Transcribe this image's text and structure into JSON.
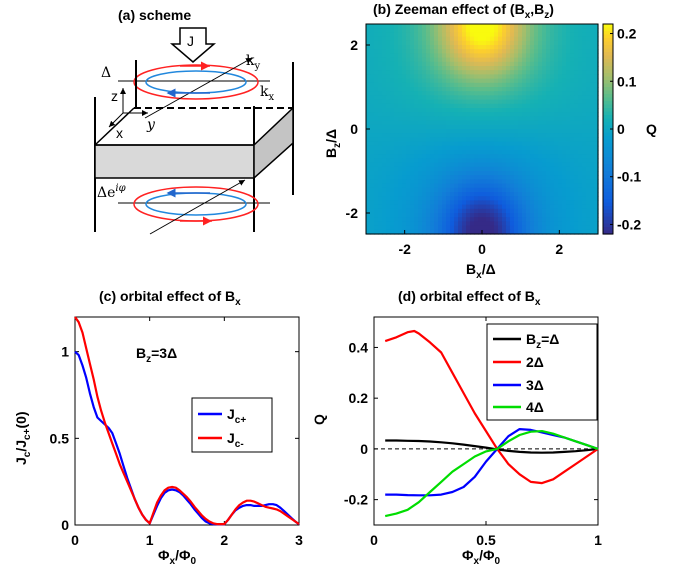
{
  "panel_a": {
    "title": "(a) scheme",
    "label_J": "J",
    "label_ky": "k",
    "label_ky_sub": "y",
    "label_kx": "k",
    "label_kx_sub": "x",
    "label_delta": "Δ",
    "label_z": "z",
    "label_x": "x",
    "label_y": "y",
    "label_delta_phase": "Δe",
    "label_delta_phase_sup": "iφ"
  },
  "chart_data": [
    {
      "id": "b",
      "type": "heatmap",
      "title": "(b) Zeeman effect of (B",
      "title_sub1": "x",
      "title_mid": ",B",
      "title_sub2": "z",
      "title_end": ")",
      "xlabel": "B",
      "xlabel_sub": "x",
      "xlabel_end": "/Δ",
      "ylabel": "B",
      "ylabel_sub": "z",
      "ylabel_end": "/Δ",
      "xlim": [
        -3,
        3
      ],
      "ylim": [
        -2.5,
        2.5
      ],
      "xticks": [
        "-2",
        "0",
        "2"
      ],
      "xtick_values": [
        -2,
        0,
        2
      ],
      "yticks": [
        "-2",
        "0",
        "2"
      ],
      "ytick_values": [
        -2,
        0,
        2
      ],
      "colorbar": {
        "label": "Q",
        "range": [
          -0.22,
          0.22
        ],
        "ticks": [
          "-0.2",
          "-0.1",
          "0",
          "0.1",
          "0.2"
        ],
        "tick_values": [
          -0.2,
          -0.1,
          0,
          0.1,
          0.2
        ],
        "colormap": "parula"
      },
      "peak_max": {
        "x": 0,
        "y": 2.3,
        "value": 0.22
      },
      "peak_min": {
        "x": 0,
        "y": -2.3,
        "value": -0.22
      }
    },
    {
      "id": "c",
      "type": "line",
      "title": "(c) orbital effect of B",
      "title_sub": "x",
      "xlabel": "Φ",
      "xlabel_sub": "x",
      "xlabel_mid": "/Φ",
      "xlabel_sub2": "0",
      "ylabel": "J",
      "ylabel_sub": "c",
      "ylabel_mid": "/J",
      "ylabel_sub2": "c+",
      "ylabel_end": "(0)",
      "xlim": [
        0,
        3
      ],
      "ylim": [
        0,
        1.2
      ],
      "xticks": [
        "0",
        "1",
        "2",
        "3"
      ],
      "xtick_values": [
        0,
        1,
        2,
        3
      ],
      "yticks": [
        "0",
        "0.5",
        "1"
      ],
      "ytick_values": [
        0,
        0.5,
        1
      ],
      "annotation": "B",
      "annotation_sub": "z",
      "annotation_end": "=3Δ",
      "series": [
        {
          "name": "J",
          "name_sub": "c+",
          "color": "#0000ff",
          "x": [
            0,
            0.05,
            0.1,
            0.15,
            0.2,
            0.25,
            0.3,
            0.35,
            0.4,
            0.45,
            0.5,
            0.55,
            0.6,
            0.65,
            0.7,
            0.75,
            0.8,
            0.85,
            0.9,
            0.95,
            1.0,
            1.05,
            1.1,
            1.15,
            1.2,
            1.25,
            1.3,
            1.35,
            1.4,
            1.45,
            1.5,
            1.55,
            1.6,
            1.65,
            1.7,
            1.75,
            1.8,
            1.85,
            1.9,
            1.95,
            2.0,
            2.05,
            2.1,
            2.15,
            2.2,
            2.25,
            2.3,
            2.35,
            2.4,
            2.45,
            2.5,
            2.55,
            2.6,
            2.65,
            2.7,
            2.75,
            2.8,
            2.85,
            2.9,
            2.95,
            3.0
          ],
          "y": [
            1.0,
            0.98,
            0.92,
            0.85,
            0.76,
            0.68,
            0.62,
            0.6,
            0.58,
            0.56,
            0.53,
            0.47,
            0.41,
            0.34,
            0.27,
            0.21,
            0.15,
            0.1,
            0.06,
            0.03,
            0.01,
            0.06,
            0.11,
            0.155,
            0.185,
            0.2,
            0.205,
            0.2,
            0.19,
            0.17,
            0.145,
            0.12,
            0.09,
            0.065,
            0.04,
            0.02,
            0.01,
            0.005,
            0.004,
            0.004,
            0.004,
            0.03,
            0.06,
            0.085,
            0.1,
            0.11,
            0.115,
            0.115,
            0.11,
            0.11,
            0.11,
            0.115,
            0.12,
            0.12,
            0.115,
            0.1,
            0.08,
            0.06,
            0.04,
            0.02,
            0.004
          ]
        },
        {
          "name": "J",
          "name_sub": "c-",
          "color": "#ff0000",
          "x": [
            0,
            0.05,
            0.1,
            0.15,
            0.2,
            0.25,
            0.3,
            0.35,
            0.4,
            0.45,
            0.5,
            0.55,
            0.6,
            0.65,
            0.7,
            0.75,
            0.8,
            0.85,
            0.9,
            0.95,
            1.0,
            1.05,
            1.1,
            1.15,
            1.2,
            1.25,
            1.3,
            1.35,
            1.4,
            1.45,
            1.5,
            1.55,
            1.6,
            1.65,
            1.7,
            1.75,
            1.8,
            1.85,
            1.9,
            1.95,
            2.0,
            2.05,
            2.1,
            2.15,
            2.2,
            2.25,
            2.3,
            2.35,
            2.4,
            2.45,
            2.5,
            2.55,
            2.6,
            2.65,
            2.7,
            2.75,
            2.8,
            2.85,
            2.9,
            2.95,
            3.0
          ],
          "y": [
            1.2,
            1.17,
            1.11,
            1.02,
            0.93,
            0.84,
            0.74,
            0.66,
            0.59,
            0.53,
            0.47,
            0.41,
            0.35,
            0.3,
            0.25,
            0.2,
            0.15,
            0.1,
            0.06,
            0.03,
            0.01,
            0.07,
            0.13,
            0.17,
            0.2,
            0.215,
            0.22,
            0.215,
            0.2,
            0.18,
            0.16,
            0.135,
            0.105,
            0.08,
            0.055,
            0.035,
            0.02,
            0.01,
            0.005,
            0.005,
            0.005,
            0.03,
            0.06,
            0.09,
            0.115,
            0.13,
            0.14,
            0.14,
            0.135,
            0.125,
            0.115,
            0.105,
            0.1,
            0.095,
            0.09,
            0.08,
            0.065,
            0.05,
            0.035,
            0.02,
            0.005
          ]
        }
      ],
      "legend_position": "center-right"
    },
    {
      "id": "d",
      "type": "line",
      "title": "(d) orbital effect of B",
      "title_sub": "x",
      "xlabel": "Φ",
      "xlabel_sub": "x",
      "xlabel_mid": "/Φ",
      "xlabel_sub2": "0",
      "ylabel": "Q",
      "xlim": [
        0,
        1
      ],
      "ylim": [
        -0.3,
        0.52
      ],
      "xticks": [
        "0",
        "0.5",
        "1"
      ],
      "xtick_values": [
        0,
        0.5,
        1
      ],
      "yticks": [
        "-0.2",
        "0",
        "0.2",
        "0.4"
      ],
      "ytick_values": [
        -0.2,
        0,
        0.2,
        0.4
      ],
      "zero_line": "dashed",
      "series": [
        {
          "name": "B",
          "name_sub": "z",
          "name_end": "=Δ",
          "color": "#000000",
          "x": [
            0.05,
            0.1,
            0.15,
            0.2,
            0.25,
            0.3,
            0.35,
            0.4,
            0.45,
            0.5,
            0.55,
            0.6,
            0.65,
            0.7,
            0.75,
            0.8,
            0.85,
            0.9,
            0.95,
            1.0
          ],
          "y": [
            0.033,
            0.033,
            0.032,
            0.031,
            0.029,
            0.026,
            0.022,
            0.017,
            0.011,
            0.005,
            -0.002,
            -0.008,
            -0.012,
            -0.014,
            -0.015,
            -0.014,
            -0.012,
            -0.009,
            -0.005,
            0.0
          ]
        },
        {
          "name": "2Δ",
          "color": "#ff0000",
          "x": [
            0.05,
            0.1,
            0.15,
            0.18,
            0.2,
            0.25,
            0.3,
            0.35,
            0.4,
            0.45,
            0.5,
            0.55,
            0.6,
            0.65,
            0.7,
            0.75,
            0.8,
            0.85,
            0.9,
            0.95,
            1.0
          ],
          "y": [
            0.425,
            0.44,
            0.46,
            0.465,
            0.455,
            0.42,
            0.38,
            0.3,
            0.22,
            0.14,
            0.07,
            0.0,
            -0.06,
            -0.1,
            -0.13,
            -0.135,
            -0.12,
            -0.09,
            -0.06,
            -0.03,
            0.0
          ]
        },
        {
          "name": "3Δ",
          "color": "#0000ff",
          "x": [
            0.05,
            0.1,
            0.15,
            0.2,
            0.25,
            0.3,
            0.35,
            0.4,
            0.45,
            0.5,
            0.55,
            0.6,
            0.65,
            0.7,
            0.75,
            0.8,
            0.85,
            0.9,
            0.95,
            1.0
          ],
          "y": [
            -0.18,
            -0.18,
            -0.182,
            -0.183,
            -0.183,
            -0.18,
            -0.17,
            -0.15,
            -0.11,
            -0.05,
            0.0,
            0.05,
            0.078,
            0.075,
            0.065,
            0.055,
            0.045,
            0.03,
            0.015,
            0.0
          ]
        },
        {
          "name": "4Δ",
          "color": "#00dd00",
          "x": [
            0.05,
            0.1,
            0.15,
            0.2,
            0.25,
            0.3,
            0.35,
            0.4,
            0.45,
            0.5,
            0.55,
            0.6,
            0.65,
            0.7,
            0.75,
            0.8,
            0.85,
            0.9,
            0.95,
            1.0
          ],
          "y": [
            -0.265,
            -0.255,
            -0.24,
            -0.21,
            -0.17,
            -0.13,
            -0.09,
            -0.06,
            -0.03,
            -0.01,
            0.0,
            0.03,
            0.055,
            0.068,
            0.07,
            0.06,
            0.045,
            0.03,
            0.015,
            0.0
          ]
        }
      ],
      "legend_position": "top-right"
    }
  ]
}
